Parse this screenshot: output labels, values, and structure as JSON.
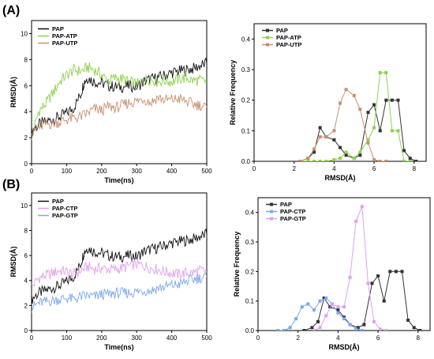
{
  "panels": [
    {
      "letter": "(A)"
    },
    {
      "letter": "(B)"
    }
  ],
  "chart_data": [
    {
      "id": "A-timeseries",
      "type": "line",
      "xlabel": "Time(ns)",
      "ylabel": "RMSD(Å)",
      "xlim": [
        0,
        500
      ],
      "ylim": [
        0,
        11
      ],
      "xticks": [
        0,
        100,
        200,
        300,
        400,
        500
      ],
      "yticks": [
        0,
        2,
        4,
        6,
        8,
        10
      ],
      "legend_position": "top-left",
      "series": [
        {
          "name": "PAP",
          "color": "#111111",
          "x": [
            0,
            20,
            40,
            60,
            80,
            100,
            120,
            140,
            150,
            160,
            180,
            200,
            220,
            240,
            260,
            280,
            300,
            320,
            340,
            360,
            380,
            400,
            420,
            440,
            460,
            480,
            500
          ],
          "y": [
            2.5,
            3.0,
            3.2,
            3.4,
            3.6,
            3.9,
            4.3,
            5.3,
            6.3,
            6.6,
            6.3,
            6.2,
            6.0,
            5.9,
            5.9,
            6.0,
            5.9,
            6.3,
            6.5,
            6.6,
            6.8,
            7.0,
            7.1,
            7.2,
            7.3,
            7.5,
            7.7
          ]
        },
        {
          "name": "PAP-ATP",
          "color": "#8fd14f",
          "x": [
            0,
            20,
            40,
            60,
            80,
            100,
            120,
            140,
            160,
            180,
            200,
            220,
            240,
            260,
            280,
            300,
            320,
            340,
            360,
            380,
            400,
            420,
            440,
            460,
            480,
            500
          ],
          "y": [
            2.0,
            4.0,
            4.6,
            5.4,
            6.3,
            6.8,
            7.2,
            7.1,
            7.4,
            7.2,
            6.8,
            6.4,
            6.6,
            6.5,
            6.3,
            6.1,
            6.4,
            6.5,
            6.3,
            6.4,
            6.3,
            6.5,
            6.6,
            6.4,
            6.4,
            6.3
          ]
        },
        {
          "name": "PAP-UTP",
          "color": "#c79070",
          "x": [
            0,
            20,
            40,
            60,
            80,
            100,
            120,
            140,
            160,
            180,
            200,
            220,
            240,
            260,
            280,
            300,
            320,
            340,
            360,
            380,
            400,
            420,
            440,
            460,
            480,
            500
          ],
          "y": [
            2.2,
            2.8,
            3.0,
            3.1,
            3.2,
            3.4,
            3.5,
            3.6,
            3.9,
            4.2,
            4.1,
            4.4,
            4.3,
            4.5,
            4.7,
            4.8,
            5.0,
            4.7,
            5.1,
            4.9,
            4.9,
            5.0,
            4.8,
            4.6,
            4.5,
            4.3
          ]
        }
      ]
    },
    {
      "id": "A-histogram",
      "type": "line",
      "xlabel": "RMSD(Å)",
      "ylabel": "Relative Frequency",
      "xlim": [
        0,
        8.6
      ],
      "ylim": [
        0,
        0.45
      ],
      "xticks": [
        0,
        2,
        4,
        6,
        8
      ],
      "yticks": [
        0.0,
        0.1,
        0.2,
        0.3,
        0.4
      ],
      "legend_position": "top-left",
      "series": [
        {
          "name": "PAP",
          "color": "#333333",
          "marker": "square",
          "x": [
            2.3,
            2.7,
            3.0,
            3.3,
            3.6,
            4.0,
            4.3,
            4.6,
            5.0,
            5.3,
            5.7,
            6.0,
            6.3,
            6.6,
            6.9,
            7.2,
            7.5,
            7.8,
            8.1
          ],
          "y": [
            0.0,
            0.01,
            0.03,
            0.11,
            0.08,
            0.07,
            0.045,
            0.02,
            0.01,
            0.02,
            0.16,
            0.185,
            0.1,
            0.2,
            0.2,
            0.2,
            0.035,
            0.01,
            0.0
          ]
        },
        {
          "name": "PAP-ATP",
          "color": "#8fd14f",
          "marker": "square",
          "x": [
            2.3,
            2.7,
            3.0,
            3.3,
            3.6,
            4.0,
            4.3,
            4.6,
            5.0,
            5.3,
            5.7,
            6.0,
            6.3,
            6.6,
            6.9,
            7.2,
            7.5,
            7.8
          ],
          "y": [
            0.0,
            0.0,
            0.0,
            0.0,
            0.0,
            0.005,
            0.01,
            0.03,
            0.01,
            0.03,
            0.07,
            0.11,
            0.29,
            0.29,
            0.1,
            0.1,
            0.0,
            0.0
          ]
        },
        {
          "name": "PAP-UTP",
          "color": "#c79070",
          "marker": "square",
          "x": [
            2.3,
            2.7,
            3.0,
            3.3,
            3.6,
            4.0,
            4.3,
            4.6,
            5.0,
            5.3,
            5.7,
            6.0,
            6.3,
            6.6
          ],
          "y": [
            0.0,
            0.01,
            0.04,
            0.08,
            0.08,
            0.1,
            0.19,
            0.235,
            0.215,
            0.17,
            0.06,
            0.005,
            0.0,
            0.0
          ]
        }
      ]
    },
    {
      "id": "B-timeseries",
      "type": "line",
      "xlabel": "Time(ns)",
      "ylabel": "RMSD(Å)",
      "xlim": [
        0,
        500
      ],
      "ylim": [
        0,
        11
      ],
      "xticks": [
        0,
        100,
        200,
        300,
        400,
        500
      ],
      "yticks": [
        0,
        2,
        4,
        6,
        8,
        10
      ],
      "legend_position": "top-left",
      "series": [
        {
          "name": "PAP",
          "color": "#111111",
          "x": [
            0,
            20,
            40,
            60,
            80,
            100,
            120,
            140,
            150,
            160,
            180,
            200,
            220,
            240,
            260,
            280,
            300,
            320,
            340,
            360,
            380,
            400,
            420,
            440,
            460,
            480,
            500
          ],
          "y": [
            2.5,
            3.0,
            3.2,
            3.4,
            3.6,
            3.9,
            4.3,
            5.3,
            6.3,
            6.6,
            6.3,
            6.2,
            6.0,
            5.9,
            5.9,
            6.0,
            5.9,
            6.3,
            6.5,
            6.6,
            6.8,
            7.0,
            7.1,
            7.2,
            7.3,
            7.5,
            7.7
          ]
        },
        {
          "name": "PAP-CTP",
          "color": "#e0a0f0",
          "x": [
            0,
            20,
            40,
            60,
            80,
            100,
            120,
            140,
            160,
            180,
            200,
            220,
            240,
            260,
            280,
            300,
            320,
            340,
            360,
            380,
            400,
            420,
            440,
            460,
            480,
            500
          ],
          "y": [
            3.5,
            4.2,
            4.4,
            4.6,
            4.8,
            4.7,
            4.5,
            4.8,
            5.1,
            4.9,
            5.0,
            4.9,
            4.9,
            5.0,
            5.2,
            5.3,
            5.2,
            5.0,
            4.9,
            4.7,
            4.6,
            4.5,
            4.6,
            4.6,
            4.8,
            4.7
          ]
        },
        {
          "name": "PAP-GTP",
          "color": "#7aa8ee",
          "x": [
            0,
            20,
            40,
            60,
            80,
            100,
            120,
            140,
            160,
            180,
            200,
            220,
            240,
            260,
            280,
            300,
            320,
            340,
            360,
            380,
            400,
            420,
            440,
            460,
            480,
            500
          ],
          "y": [
            1.8,
            2.2,
            2.3,
            2.4,
            2.5,
            2.6,
            2.5,
            2.7,
            2.8,
            2.7,
            2.9,
            2.9,
            3.0,
            3.0,
            3.0,
            3.1,
            3.2,
            3.2,
            3.4,
            3.5,
            3.6,
            3.7,
            3.9,
            4.1,
            4.2,
            4.3
          ]
        }
      ]
    },
    {
      "id": "B-histogram",
      "type": "line",
      "xlabel": "RMSD(Å)",
      "ylabel": "Relative Frequency",
      "xlim": [
        0,
        8.6
      ],
      "ylim": [
        0,
        0.45
      ],
      "xticks": [
        0,
        2,
        4,
        6,
        8
      ],
      "yticks": [
        0.0,
        0.1,
        0.2,
        0.3,
        0.4
      ],
      "legend_position": "top-left",
      "series": [
        {
          "name": "PAP",
          "color": "#333333",
          "marker": "square",
          "x": [
            2.3,
            2.7,
            3.0,
            3.3,
            3.6,
            4.0,
            4.3,
            4.6,
            5.0,
            5.3,
            5.7,
            6.0,
            6.3,
            6.6,
            6.9,
            7.2,
            7.5,
            7.8,
            8.1
          ],
          "y": [
            0.0,
            0.01,
            0.03,
            0.11,
            0.08,
            0.07,
            0.045,
            0.02,
            0.01,
            0.02,
            0.16,
            0.185,
            0.1,
            0.2,
            0.2,
            0.2,
            0.035,
            0.01,
            0.0
          ]
        },
        {
          "name": "PAP-CTP",
          "color": "#7aa8ee",
          "marker": "square",
          "x": [
            1.0,
            1.3,
            1.6,
            1.9,
            2.2,
            2.5,
            2.8,
            3.1,
            3.4,
            3.7,
            4.0,
            4.3,
            4.6,
            4.9,
            5.2
          ],
          "y": [
            0.0,
            0.0,
            0.01,
            0.04,
            0.08,
            0.09,
            0.07,
            0.1,
            0.11,
            0.09,
            0.06,
            0.04,
            0.02,
            0.005,
            0.0
          ]
        },
        {
          "name": "PAP-GTP",
          "color": "#e0a0f0",
          "marker": "square",
          "x": [
            2.8,
            3.1,
            3.4,
            3.7,
            4.0,
            4.3,
            4.6,
            4.9,
            5.2,
            5.5,
            5.8,
            6.1,
            6.4
          ],
          "y": [
            0.0,
            0.01,
            0.05,
            0.09,
            0.08,
            0.08,
            0.18,
            0.37,
            0.42,
            0.16,
            0.03,
            0.005,
            0.0
          ]
        }
      ]
    }
  ]
}
